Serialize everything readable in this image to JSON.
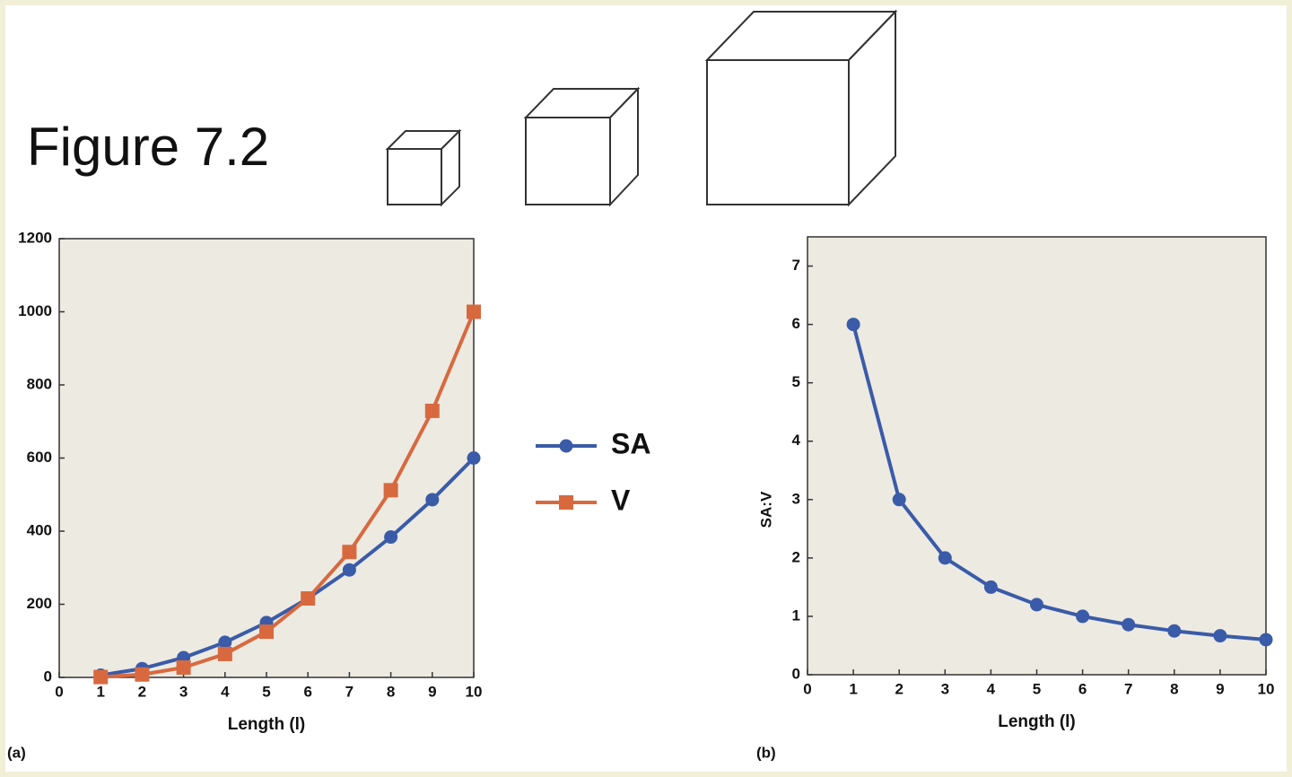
{
  "title": "Figure 7.2",
  "chart_data": [
    {
      "type": "line",
      "panel": "(a)",
      "x_label": "Length (l)",
      "x": [
        1,
        2,
        3,
        4,
        5,
        6,
        7,
        8,
        9,
        10
      ],
      "series": [
        {
          "name": "SA",
          "color": "#3a5ba8",
          "marker": "circle",
          "values": [
            6,
            24,
            54,
            96,
            150,
            216,
            294,
            384,
            486,
            600
          ]
        },
        {
          "name": "V",
          "color": "#d8693f",
          "marker": "square",
          "values": [
            1,
            8,
            27,
            64,
            125,
            216,
            343,
            512,
            729,
            1000
          ]
        }
      ],
      "xlim": [
        0,
        10
      ],
      "xticks": [
        0,
        1,
        2,
        3,
        4,
        5,
        6,
        7,
        8,
        9,
        10
      ],
      "ylim": [
        0,
        1200
      ],
      "yticks": [
        0,
        200,
        400,
        600,
        800,
        1000,
        1200
      ],
      "legend": "right"
    },
    {
      "type": "line",
      "panel": "(b)",
      "x_label": "Length (l)",
      "y_label": "SA:V",
      "x": [
        1,
        2,
        3,
        4,
        5,
        6,
        7,
        8,
        9,
        10
      ],
      "series": [
        {
          "name": "SA:V",
          "color": "#3a5ba8",
          "marker": "circle",
          "values": [
            6,
            3,
            2,
            1.5,
            1.2,
            1,
            0.857,
            0.75,
            0.667,
            0.6
          ]
        }
      ],
      "xlim": [
        0,
        10
      ],
      "xticks": [
        0,
        1,
        2,
        3,
        4,
        5,
        6,
        7,
        8,
        9,
        10
      ],
      "ylim": [
        0,
        7.5
      ],
      "yticks": [
        0,
        1,
        2,
        3,
        4,
        5,
        6,
        7
      ]
    }
  ]
}
